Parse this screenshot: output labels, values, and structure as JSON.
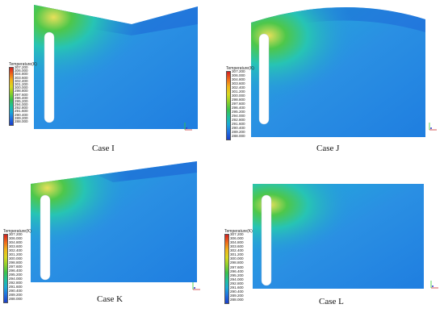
{
  "legend": {
    "title": "Temperature(K)",
    "labels": [
      "307.200",
      "306.000",
      "304.800",
      "303.600",
      "302.400",
      "301.200",
      "300.000",
      "298.800",
      "297.600",
      "296.400",
      "295.200",
      "294.000",
      "292.800",
      "291.600",
      "290.400",
      "289.200",
      "288.000"
    ]
  },
  "panels": [
    {
      "id": "I",
      "caption": "Case I"
    },
    {
      "id": "J",
      "caption": "Case J"
    },
    {
      "id": "K",
      "caption": "Case K"
    },
    {
      "id": "L",
      "caption": "Case L"
    }
  ],
  "colors": {
    "field_base": "#2a8fe3",
    "field_dark": "#1a5fd4",
    "hot_core": "#e8e05a",
    "hot_mid": "#4ec74a",
    "hot_edge": "#27c4b4",
    "heater": "#ffffff"
  }
}
